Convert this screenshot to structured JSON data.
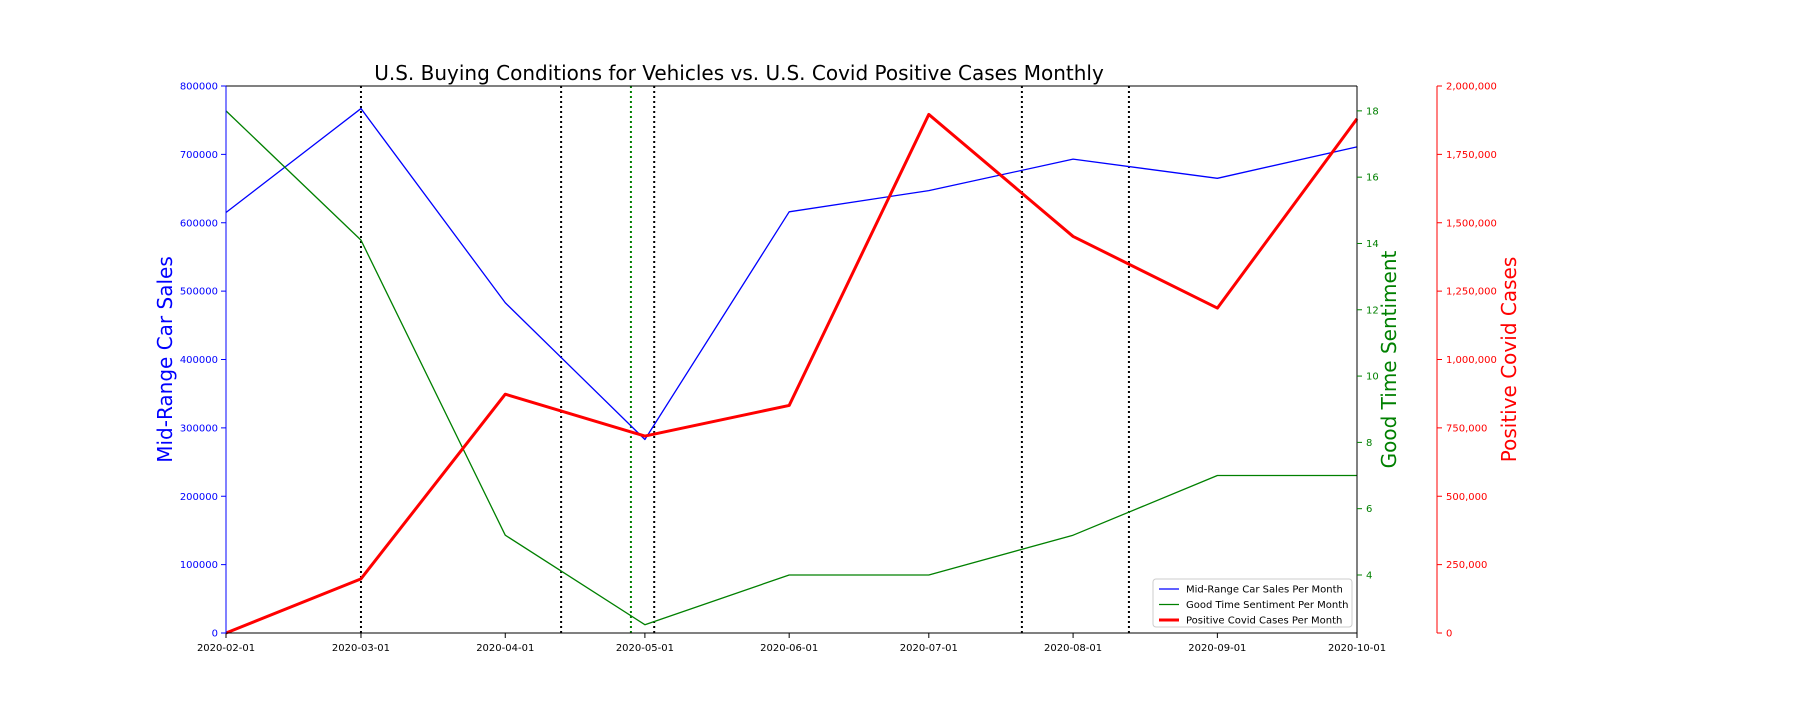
{
  "colors": {
    "sales": "#0000ff",
    "sentiment": "#008000",
    "covid": "#ff0000",
    "event_line": "#000000"
  },
  "chart_data": {
    "type": "line",
    "title": "U.S. Buying Conditions for Vehicles vs. U.S. Covid Positive Cases Monthly",
    "x": [
      "2020-02-01",
      "2020-03-01",
      "2020-04-01",
      "2020-05-01",
      "2020-06-01",
      "2020-07-01",
      "2020-08-01",
      "2020-09-01",
      "2020-10-01"
    ],
    "x_tick_labels": [
      "2020-02-01",
      "2020-03-01",
      "2020-04-01",
      "2020-05-01",
      "2020-06-01",
      "2020-07-01",
      "2020-08-01",
      "2020-09-01",
      "2020-10-01"
    ],
    "xlim": [
      "2020-02-01",
      "2020-10-01"
    ],
    "axes": {
      "left": {
        "label": "Mid-Range Car Sales",
        "ylim": [
          0,
          800000
        ],
        "ticks": [
          0,
          100000,
          200000,
          300000,
          400000,
          500000,
          600000,
          700000,
          800000
        ],
        "tick_labels": [
          "0",
          "100000",
          "200000",
          "300000",
          "400000",
          "500000",
          "600000",
          "700000",
          "800000"
        ]
      },
      "right1": {
        "label": "Good Time Sentiment",
        "ylim": [
          2.25,
          18.75
        ],
        "ticks": [
          4,
          6,
          8,
          10,
          12,
          14,
          16,
          18
        ],
        "tick_labels": [
          "4",
          "6",
          "8",
          "10",
          "12",
          "14",
          "16",
          "18"
        ]
      },
      "right2": {
        "label": "Positive Covid Cases",
        "ylim": [
          0,
          2000000
        ],
        "ticks": [
          0,
          250000,
          500000,
          750000,
          1000000,
          1250000,
          1500000,
          1750000,
          2000000
        ],
        "tick_labels": [
          "0",
          "250,000",
          "500,000",
          "750,000",
          "1,000,000",
          "1,250,000",
          "1,500,000",
          "1,750,000",
          "2,000,000"
        ]
      }
    },
    "series": [
      {
        "name": "Mid-Range Car Sales Per Month",
        "axis": "left",
        "color": "#0000ff",
        "values": [
          615000,
          767000,
          483000,
          283000,
          616000,
          647000,
          693000,
          665000,
          711000
        ]
      },
      {
        "name": "Good Time Sentiment Per Month",
        "axis": "right1",
        "color": "#008000",
        "values": [
          18,
          14.1,
          5.2,
          2.5,
          4.0,
          4.0,
          5.2,
          7.0,
          7.0
        ]
      },
      {
        "name": "Positive Covid Cases Per Month",
        "axis": "right2",
        "color": "#ff0000",
        "values": [
          0,
          198000,
          873000,
          720000,
          832000,
          1896000,
          1450000,
          1188000,
          1880000
        ]
      }
    ],
    "event_lines": [
      {
        "date": "2020-03-01",
        "color": "#000000"
      },
      {
        "date": "2020-04-13",
        "color": "#000000"
      },
      {
        "date": "2020-04-28",
        "color": "#008000"
      },
      {
        "date": "2020-05-03",
        "color": "#000000"
      },
      {
        "date": "2020-07-21",
        "color": "#000000"
      },
      {
        "date": "2020-08-13",
        "color": "#000000"
      }
    ],
    "legend_position": "lower-right",
    "grid": false
  }
}
